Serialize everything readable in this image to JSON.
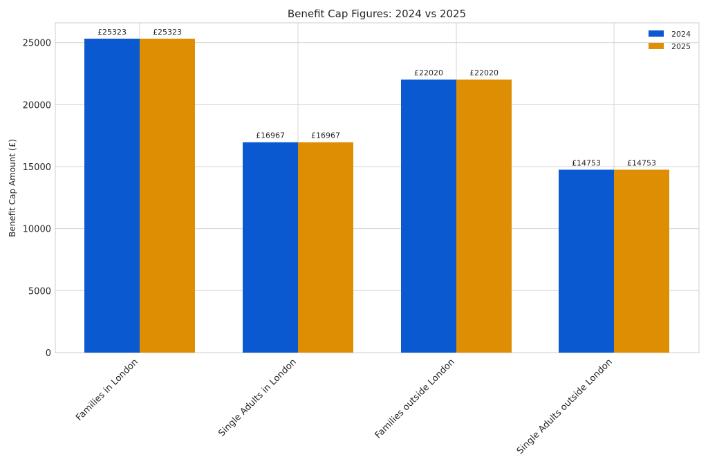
{
  "chart_data": {
    "type": "bar",
    "title": "Benefit Cap Figures: 2024 vs 2025",
    "xlabel": "",
    "ylabel": "Benefit Cap Amount (£)",
    "categories": [
      "Families in London",
      "Single Adults in London",
      "Families outside London",
      "Single Adults outside London"
    ],
    "series": [
      {
        "name": "2024",
        "values": [
          25323,
          16967,
          22020,
          14753
        ],
        "color": "#0b59d1"
      },
      {
        "name": "2025",
        "values": [
          25323,
          16967,
          22020,
          14753
        ],
        "color": "#dd8e02"
      }
    ],
    "value_label_prefix": "£",
    "ylim": [
      0,
      26600
    ],
    "yticks": [
      0,
      5000,
      10000,
      15000,
      20000,
      25000
    ],
    "grid": true,
    "legend_position": "top-right"
  }
}
